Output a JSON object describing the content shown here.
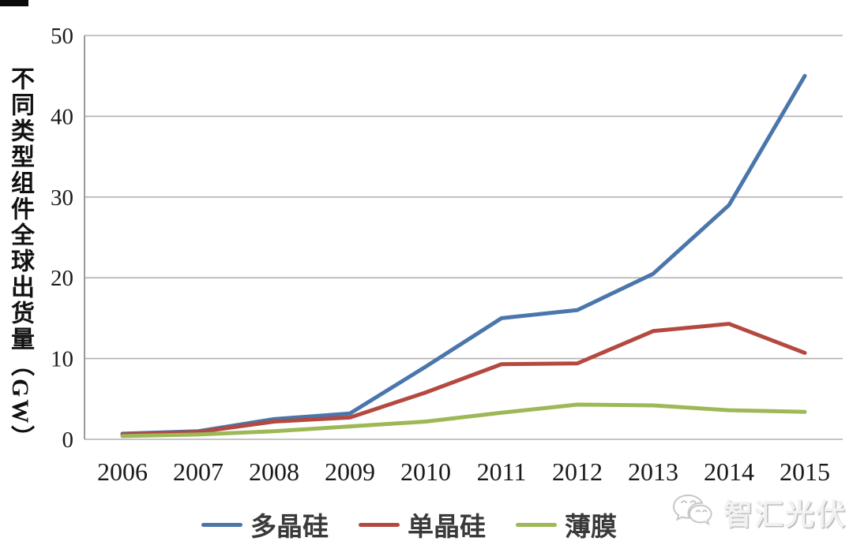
{
  "chart_data": {
    "type": "line",
    "title": "",
    "ylabel": "不同类型组件全球出货量（GW）",
    "xlabel": "",
    "categories": [
      "2006",
      "2007",
      "2008",
      "2009",
      "2010",
      "2011",
      "2012",
      "2013",
      "2014",
      "2015"
    ],
    "series": [
      {
        "name": "多晶硅",
        "color": "#4a76ab",
        "values": [
          0.7,
          1.0,
          2.5,
          3.2,
          9.0,
          15.0,
          16.0,
          20.5,
          29.0,
          45.0
        ]
      },
      {
        "name": "单晶硅",
        "color": "#b3493f",
        "values": [
          0.6,
          0.9,
          2.2,
          2.7,
          5.8,
          9.3,
          9.4,
          13.4,
          14.3,
          10.7
        ]
      },
      {
        "name": "薄膜",
        "color": "#9cb857",
        "values": [
          0.4,
          0.6,
          1.0,
          1.6,
          2.2,
          3.3,
          4.3,
          4.2,
          3.6,
          3.4
        ]
      }
    ],
    "ylim": [
      0,
      50
    ],
    "yticks": [
      0,
      10,
      20,
      30,
      40,
      50
    ],
    "grid": true,
    "legend_position": "bottom"
  },
  "colors": {
    "gridline": "#b2b2b2",
    "axis_line": "#9a9a9a",
    "tick_text": "#1a1a1a"
  },
  "watermark": {
    "label": "智汇光伏",
    "icon": "wechat-icon"
  }
}
